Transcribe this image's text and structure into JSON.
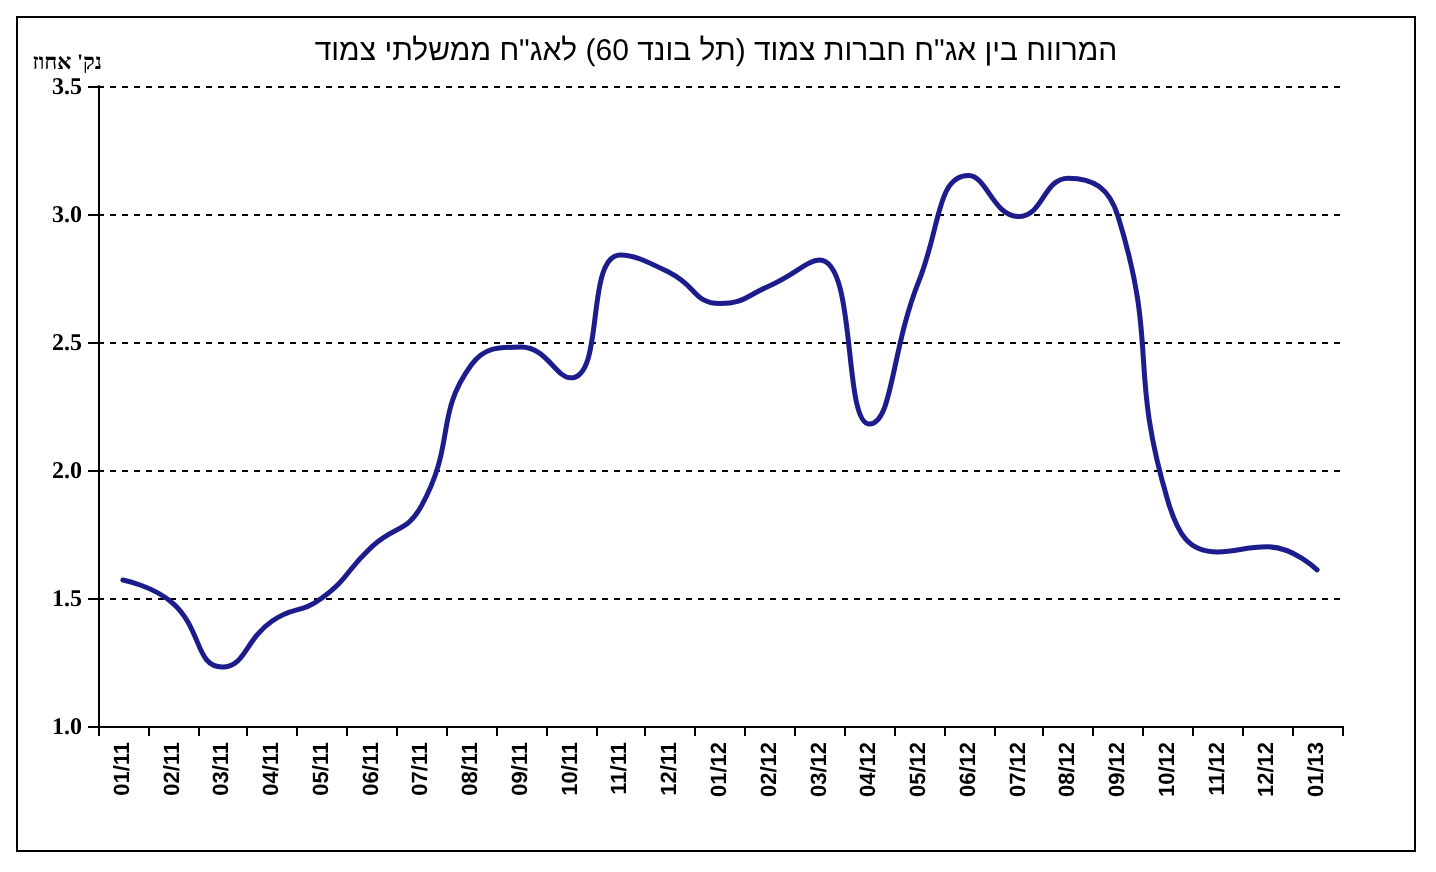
{
  "chart_data": {
    "type": "line",
    "title": "המרווח בין אג\"ח חברות צמוד (תל בונד 60) לאג\"ח ממשלתי צמוד",
    "ylabel": "נק' אחוז",
    "categories": [
      "01/11",
      "02/11",
      "03/11",
      "04/11",
      "05/11",
      "06/11",
      "07/11",
      "08/11",
      "09/11",
      "10/11",
      "11/11",
      "12/11",
      "01/12",
      "02/12",
      "03/12",
      "04/12",
      "05/12",
      "06/12",
      "07/12",
      "08/12",
      "09/12",
      "10/12",
      "11/12",
      "12/12",
      "01/13"
    ],
    "series": [
      {
        "color": "#1c1c8c",
        "values": [
          1.57,
          1.48,
          1.23,
          1.41,
          1.5,
          1.7,
          1.86,
          2.41,
          2.48,
          2.36,
          2.84,
          2.77,
          2.65,
          2.72,
          2.82,
          2.18,
          2.74,
          3.15,
          2.99,
          3.14,
          2.99,
          1.88,
          1.68,
          1.7,
          1.61
        ]
      }
    ],
    "ylim": [
      1,
      3.5
    ],
    "yticks": [
      {
        "value": 1,
        "label": "1.0"
      },
      1.5,
      {
        "value": 2,
        "label": "2.0"
      },
      2.5,
      {
        "value": 3,
        "label": "3.0"
      },
      3.5
    ],
    "grid": "y",
    "marker": "none",
    "line_style": "solid"
  }
}
